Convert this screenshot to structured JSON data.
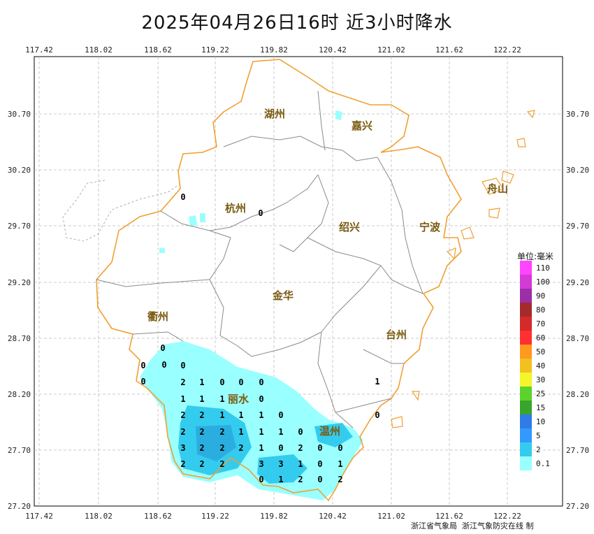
{
  "title": "2025年04月26日16时  近3小时降水",
  "x_ticks": [
    "117.42",
    "118.02",
    "118.62",
    "119.22",
    "119.82",
    "120.42",
    "121.02",
    "121.62",
    "122.22"
  ],
  "y_ticks": [
    "30.70",
    "30.20",
    "29.70",
    "29.20",
    "28.70",
    "28.20",
    "27.70",
    "27.20"
  ],
  "cities": [
    {
      "name": "湖州"
    },
    {
      "name": "嘉兴"
    },
    {
      "name": "舟山"
    },
    {
      "name": "杭州"
    },
    {
      "name": "绍兴"
    },
    {
      "name": "宁波"
    },
    {
      "name": "金华"
    },
    {
      "name": "衢州"
    },
    {
      "name": "台州"
    },
    {
      "name": "丽水"
    },
    {
      "name": "温州"
    }
  ],
  "station_values": [
    "0",
    "0",
    "0",
    "0",
    "0",
    "0",
    "0",
    "2",
    "1",
    "0",
    "0",
    "0",
    "1",
    "1",
    "1",
    "0",
    "2",
    "2",
    "1",
    "1",
    "1",
    "0",
    "2",
    "2",
    "2",
    "1",
    "1",
    "1",
    "0",
    "3",
    "2",
    "2",
    "2",
    "1",
    "0",
    "2",
    "0",
    "0",
    "2",
    "2",
    "2",
    "3",
    "3",
    "1",
    "0",
    "1",
    "1",
    "2",
    "0",
    "2",
    "1",
    "0",
    "0"
  ],
  "legend": {
    "title": "单位:毫米",
    "items": [
      {
        "label": "110",
        "color": "#ff44ff"
      },
      {
        "label": "100",
        "color": "#d43ad4"
      },
      {
        "label": "90",
        "color": "#9b2fa8"
      },
      {
        "label": "80",
        "color": "#a52a2a"
      },
      {
        "label": "70",
        "color": "#d42a2a"
      },
      {
        "label": "60",
        "color": "#ff3030"
      },
      {
        "label": "50",
        "color": "#ff9a1f"
      },
      {
        "label": "40",
        "color": "#f2c020"
      },
      {
        "label": "30",
        "color": "#f5f52a"
      },
      {
        "label": "25",
        "color": "#5cd22e"
      },
      {
        "label": "15",
        "color": "#3aa52a"
      },
      {
        "label": "10",
        "color": "#2f7ce6"
      },
      {
        "label": "5",
        "color": "#3399ff"
      },
      {
        "label": "2",
        "color": "#33ccee"
      },
      {
        "label": "0.1",
        "color": "#99ffff"
      }
    ]
  },
  "credit": "浙江省气象局  浙江气象防灾在线 制"
}
